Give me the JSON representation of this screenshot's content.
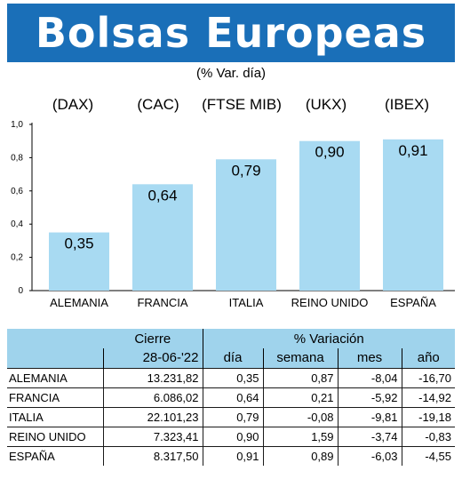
{
  "header": {
    "title": "Bolsas Europeas",
    "subtitle": "(% Var. día)"
  },
  "indices": [
    "(DAX)",
    "(CAC)",
    "(FTSE MIB)",
    "(UKX)",
    "(IBEX)"
  ],
  "colors": {
    "banner": "#1a6fb8",
    "bar": "#a8daf2",
    "table_header": "#9fd3ec"
  },
  "chart_data": {
    "type": "bar",
    "categories": [
      "ALEMANIA",
      "FRANCIA",
      "ITALIA",
      "REINO UNIDO",
      "ESPAÑA"
    ],
    "values": [
      0.35,
      0.64,
      0.79,
      0.9,
      0.91
    ],
    "value_labels": [
      "0,35",
      "0,64",
      "0,79",
      "0,90",
      "0,91"
    ],
    "ylim": [
      0,
      1.0
    ],
    "yticks": [
      0,
      0.2,
      0.4,
      0.6,
      0.8,
      1.0
    ],
    "ytick_labels": [
      "0",
      "0,2",
      "0,4",
      "0,6",
      "0,8",
      "1,0"
    ],
    "grid": false,
    "title": "",
    "xlabel": "",
    "ylabel": ""
  },
  "table": {
    "group_headers": {
      "cierre": "Cierre",
      "variacion": "% Variación"
    },
    "columns": {
      "date": "28-06-'22",
      "dia": "día",
      "semana": "semana",
      "mes": "mes",
      "ano": "año"
    },
    "rows": [
      {
        "name": "ALEMANIA",
        "cierre": "13.231,82",
        "dia": "0,35",
        "semana": "0,87",
        "mes": "-8,04",
        "ano": "-16,70"
      },
      {
        "name": "FRANCIA",
        "cierre": "6.086,02",
        "dia": "0,64",
        "semana": "0,21",
        "mes": "-5,92",
        "ano": "-14,92"
      },
      {
        "name": "ITALIA",
        "cierre": "22.101,23",
        "dia": "0,79",
        "semana": "-0,08",
        "mes": "-9,81",
        "ano": "-19,18"
      },
      {
        "name": "REINO UNIDO",
        "cierre": "7.323,41",
        "dia": "0,90",
        "semana": "1,59",
        "mes": "-3,74",
        "ano": "-0,83"
      },
      {
        "name": "ESPAÑA",
        "cierre": "8.317,50",
        "dia": "0,91",
        "semana": "0,89",
        "mes": "-6,03",
        "ano": "-4,55"
      }
    ]
  }
}
